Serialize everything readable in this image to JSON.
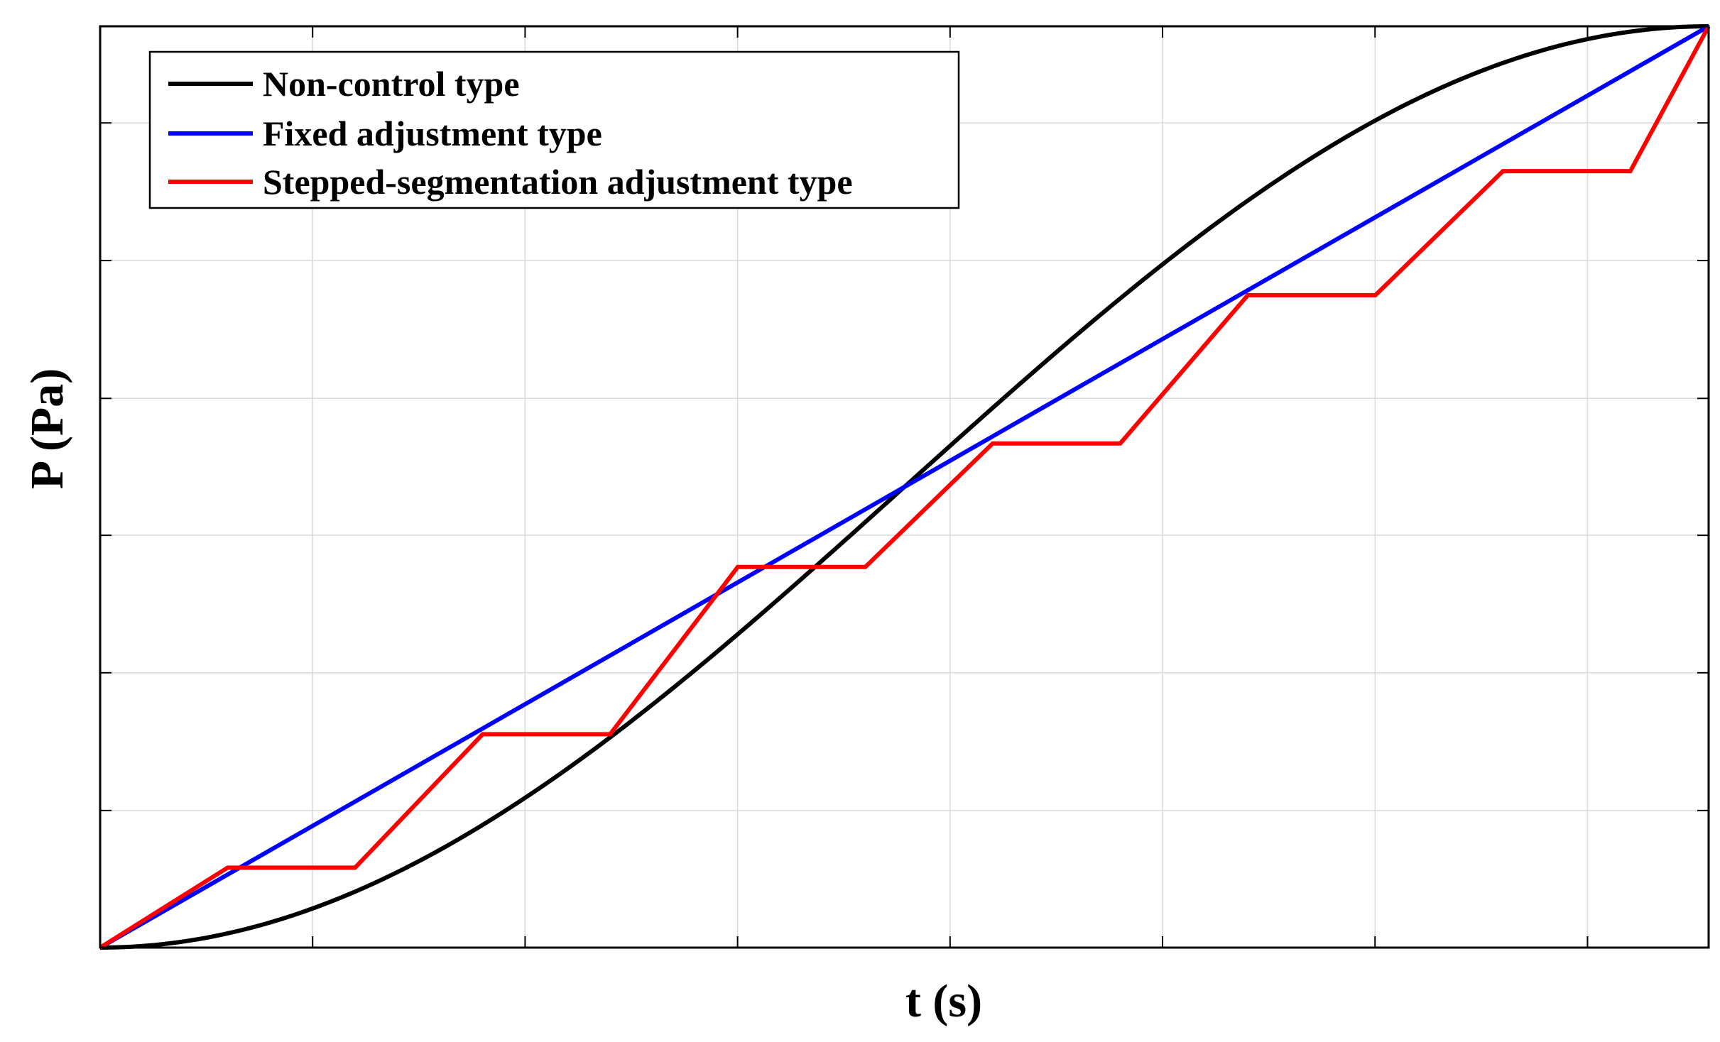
{
  "chart_data": {
    "type": "line",
    "xlabel": "t (s)",
    "ylabel": "P (Pa)",
    "xlim": [
      0,
      1
    ],
    "ylim": [
      0,
      1
    ],
    "x_ticks": [
      0,
      0.1321,
      0.2642,
      0.3963,
      0.5284,
      0.6605,
      0.7926,
      0.9247
    ],
    "y_ticks": [
      0,
      0.1488,
      0.2983,
      0.4475,
      0.5961,
      0.7457,
      0.8951
    ],
    "grid": true,
    "legend_position": "top-left",
    "series": [
      {
        "name": "Non-control type",
        "color": "#000000",
        "x": [
          0,
          0.05,
          0.1,
          0.15,
          0.2,
          0.25,
          0.3,
          0.35,
          0.4,
          0.45,
          0.5,
          0.55,
          0.6,
          0.65,
          0.7,
          0.75,
          0.8,
          0.85,
          0.9,
          0.95,
          1
        ],
        "values": [
          0,
          0.0062,
          0.0245,
          0.0545,
          0.0955,
          0.1464,
          0.2061,
          0.273,
          0.3455,
          0.4218,
          0.5,
          0.5782,
          0.6545,
          0.727,
          0.7939,
          0.8536,
          0.9045,
          0.9455,
          0.9755,
          0.9938,
          1
        ]
      },
      {
        "name": "Fixed adjustment type",
        "color": "#0000ff",
        "x": [
          0,
          1
        ],
        "values": [
          0,
          1
        ]
      },
      {
        "name": "Stepped-segmentation adjustment type",
        "color": "#ff0000",
        "x": [
          0,
          0.0793,
          0.1585,
          0.2378,
          0.3171,
          0.3964,
          0.4757,
          0.5549,
          0.6342,
          0.7135,
          0.7928,
          0.8721,
          0.9513,
          1
        ],
        "values": [
          0,
          0.0868,
          0.0868,
          0.2316,
          0.2316,
          0.4131,
          0.4131,
          0.5472,
          0.5472,
          0.7081,
          0.7081,
          0.8427,
          0.8427,
          1
        ]
      }
    ]
  }
}
